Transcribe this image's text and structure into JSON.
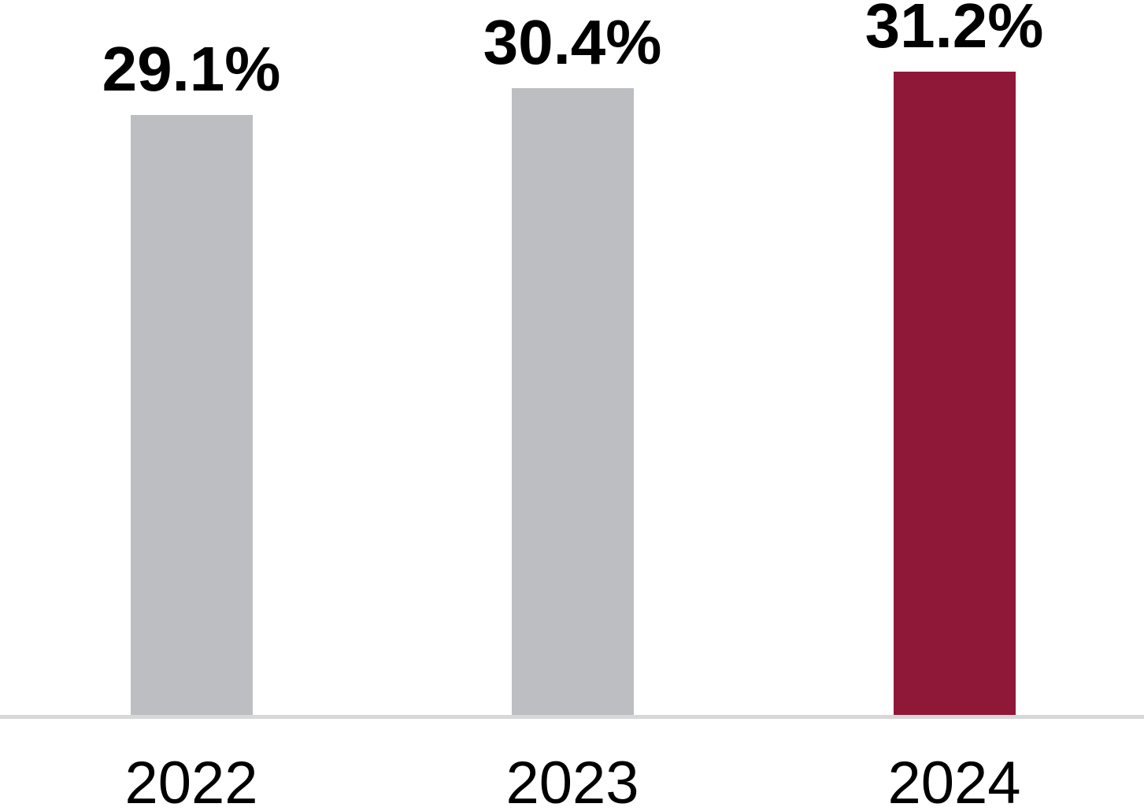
{
  "chart_data": {
    "type": "bar",
    "title": "",
    "xlabel": "",
    "ylabel": "",
    "categories": [
      "2022",
      "2023",
      "2024"
    ],
    "values": [
      29.1,
      30.4,
      31.2
    ],
    "bars": [
      {
        "category": "2022",
        "value": 29.1,
        "label": "29.1%",
        "color": "#BDBEC2",
        "highlighted": false
      },
      {
        "category": "2023",
        "value": 30.4,
        "label": "30.4%",
        "color": "#BDBEC2",
        "highlighted": false
      },
      {
        "category": "2024",
        "value": 31.2,
        "label": "31.2%",
        "color": "#8F1838",
        "highlighted": true
      }
    ],
    "ylim": [
      0,
      31.2
    ],
    "grid": false,
    "legend": null,
    "data_labels": true,
    "colors": {
      "bar_default": "#BDBEC2",
      "bar_highlight": "#8F1838",
      "value_label": "#000000",
      "axis_label": "#000000",
      "baseline": "#D8D8DA",
      "background": "#FFFFFF"
    }
  }
}
